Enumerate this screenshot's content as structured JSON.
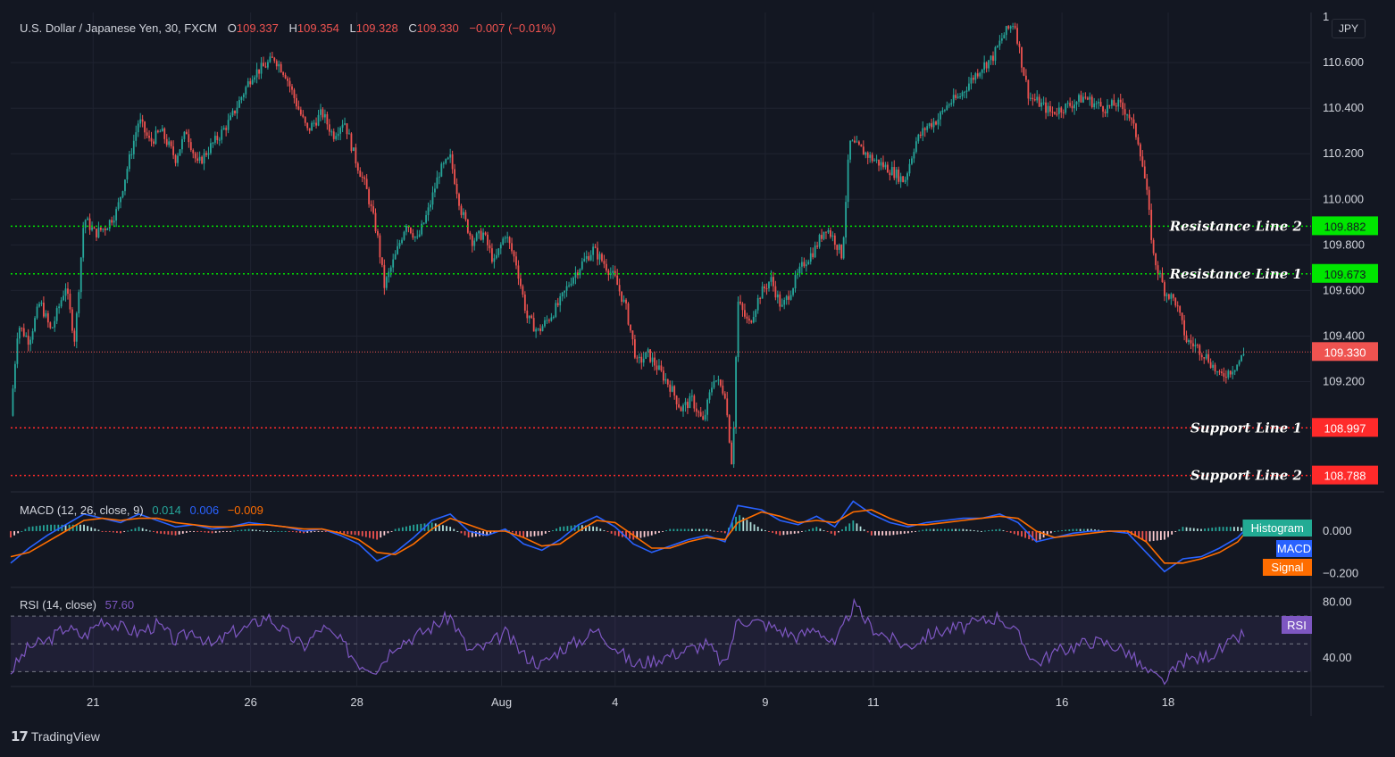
{
  "header": {
    "symbol": "U.S. Dollar / Japanese Yen, 30, FXCM",
    "o_label": "O",
    "o_value": "109.337",
    "h_label": "H",
    "h_value": "109.354",
    "l_label": "L",
    "l_value": "109.328",
    "c_label": "C",
    "c_value": "109.330",
    "change": "−0.007 (−0.01%)"
  },
  "currency_button": "JPY",
  "colors": {
    "background": "#131722",
    "up": "#26a69a",
    "down": "#ef5350",
    "resistance": "#00e600",
    "support": "#ff2a2a",
    "macd": "#2962ff",
    "signal": "#ff6d00",
    "rsi": "#7e57c2"
  },
  "chart_data": [
    {
      "type": "candlestick",
      "title": "U.S. Dollar / Japanese Yen, 30, FXCM",
      "ylim": [
        108.72,
        110.82
      ],
      "y_ticks": [
        "110.600",
        "110.400",
        "110.200",
        "110.000",
        "109.800",
        "109.600",
        "109.400",
        "109.200"
      ],
      "x_ticks": [
        "21",
        "26",
        "28",
        "Aug",
        "4",
        "9",
        "11",
        "16",
        "18"
      ],
      "close_series": [
        [
          0,
          109.05
        ],
        [
          0.4,
          109.45
        ],
        [
          1,
          109.38
        ],
        [
          1.6,
          109.55
        ],
        [
          2.2,
          109.42
        ],
        [
          3,
          109.62
        ],
        [
          3.5,
          109.38
        ],
        [
          4,
          109.92
        ],
        [
          4.6,
          109.85
        ],
        [
          5.2,
          109.88
        ],
        [
          5.8,
          109.95
        ],
        [
          6.4,
          110.15
        ],
        [
          7,
          110.35
        ],
        [
          7.6,
          110.25
        ],
        [
          8.2,
          110.3
        ],
        [
          9,
          110.18
        ],
        [
          9.6,
          110.3
        ],
        [
          10.2,
          110.15
        ],
        [
          10.8,
          110.22
        ],
        [
          11.4,
          110.28
        ],
        [
          12,
          110.35
        ],
        [
          12.6,
          110.45
        ],
        [
          13.2,
          110.55
        ],
        [
          13.8,
          110.58
        ],
        [
          14.4,
          110.62
        ],
        [
          15,
          110.55
        ],
        [
          15.6,
          110.42
        ],
        [
          16.2,
          110.3
        ],
        [
          17,
          110.38
        ],
        [
          17.6,
          110.28
        ],
        [
          18.2,
          110.35
        ],
        [
          18.8,
          110.18
        ],
        [
          19.4,
          110.05
        ],
        [
          20,
          109.85
        ],
        [
          20.4,
          109.62
        ],
        [
          21,
          109.75
        ],
        [
          21.6,
          109.9
        ],
        [
          22.2,
          109.82
        ],
        [
          22.8,
          109.95
        ],
        [
          23.4,
          110.12
        ],
        [
          24,
          110.18
        ],
        [
          24.6,
          109.95
        ],
        [
          25.2,
          109.82
        ],
        [
          25.8,
          109.85
        ],
        [
          26.4,
          109.72
        ],
        [
          27,
          109.85
        ],
        [
          27.6,
          109.72
        ],
        [
          28.2,
          109.48
        ],
        [
          28.8,
          109.42
        ],
        [
          29.4,
          109.48
        ],
        [
          30,
          109.55
        ],
        [
          30.6,
          109.65
        ],
        [
          31.2,
          109.72
        ],
        [
          31.8,
          109.78
        ],
        [
          32.4,
          109.72
        ],
        [
          33,
          109.65
        ],
        [
          33.6,
          109.52
        ],
        [
          34.2,
          109.28
        ],
        [
          34.8,
          109.32
        ],
        [
          35.4,
          109.25
        ],
        [
          36,
          109.18
        ],
        [
          36.6,
          109.08
        ],
        [
          37.2,
          109.12
        ],
        [
          37.8,
          109.02
        ],
        [
          38.4,
          109.22
        ],
        [
          39,
          109.15
        ],
        [
          39.4,
          108.82
        ],
        [
          39.7,
          109.55
        ],
        [
          40.3,
          109.45
        ],
        [
          40.9,
          109.58
        ],
        [
          41.5,
          109.65
        ],
        [
          42.1,
          109.52
        ],
        [
          42.7,
          109.62
        ],
        [
          43.3,
          109.72
        ],
        [
          43.9,
          109.78
        ],
        [
          44.5,
          109.88
        ],
        [
          45,
          109.82
        ],
        [
          45.4,
          109.75
        ],
        [
          45.8,
          110.25
        ],
        [
          46.4,
          110.22
        ],
        [
          47,
          110.18
        ],
        [
          47.6,
          110.15
        ],
        [
          48.2,
          110.12
        ],
        [
          48.8,
          110.08
        ],
        [
          49.4,
          110.25
        ],
        [
          50,
          110.32
        ],
        [
          50.6,
          110.35
        ],
        [
          51.2,
          110.42
        ],
        [
          51.8,
          110.45
        ],
        [
          52.4,
          110.52
        ],
        [
          53,
          110.58
        ],
        [
          53.6,
          110.62
        ],
        [
          54.2,
          110.72
        ],
        [
          54.8,
          110.78
        ],
        [
          55.2,
          110.6
        ],
        [
          55.6,
          110.45
        ],
        [
          56.2,
          110.42
        ],
        [
          56.8,
          110.38
        ],
        [
          57.4,
          110.4
        ],
        [
          58,
          110.42
        ],
        [
          58.6,
          110.45
        ],
        [
          59.2,
          110.42
        ],
        [
          59.8,
          110.4
        ],
        [
          60.4,
          110.42
        ],
        [
          61,
          110.38
        ],
        [
          61.6,
          110.25
        ],
        [
          62,
          110.05
        ],
        [
          62.4,
          109.75
        ],
        [
          63,
          109.6
        ],
        [
          63.6,
          109.55
        ],
        [
          64.2,
          109.38
        ],
        [
          64.8,
          109.35
        ],
        [
          65.4,
          109.3
        ],
        [
          66,
          109.22
        ],
        [
          66.6,
          109.25
        ],
        [
          67,
          109.28
        ],
        [
          67.4,
          109.33
        ]
      ],
      "reference_lines": [
        {
          "label": "Resistance Line 2",
          "value": 109.882,
          "value_label": "109.882"
        },
        {
          "label": "Resistance Line 1",
          "value": 109.673,
          "value_label": "109.673"
        },
        {
          "label": "Support Line 1",
          "value": 108.997,
          "value_label": "108.997"
        },
        {
          "label": "Support Line 2",
          "value": 108.788,
          "value_label": "108.788"
        }
      ],
      "last_price": {
        "value": 109.33,
        "label": "109.330"
      },
      "axis_top_partial_label": "1"
    },
    {
      "type": "line",
      "title": "MACD (12, 26, close, 9)",
      "readings": {
        "histogram": "0.014",
        "macd": "0.006",
        "signal": "−0.009"
      },
      "ylim": [
        -0.26,
        0.18
      ],
      "y_ticks": [
        "0.000",
        "−0.200"
      ],
      "legend": [
        "Histogram",
        "MACD",
        "Signal"
      ],
      "macd_series": [
        [
          0,
          -0.15
        ],
        [
          1,
          -0.08
        ],
        [
          2,
          -0.02
        ],
        [
          3,
          0.03
        ],
        [
          4,
          0.08
        ],
        [
          5,
          0.06
        ],
        [
          6,
          0.04
        ],
        [
          7,
          0.08
        ],
        [
          8,
          0.05
        ],
        [
          9,
          0.02
        ],
        [
          10,
          0.03
        ],
        [
          11,
          0.01
        ],
        [
          12,
          0.02
        ],
        [
          13,
          0.04
        ],
        [
          14,
          0.03
        ],
        [
          15,
          0.02
        ],
        [
          16,
          0.0
        ],
        [
          17,
          0.01
        ],
        [
          18,
          -0.02
        ],
        [
          19,
          -0.06
        ],
        [
          20,
          -0.14
        ],
        [
          21,
          -0.1
        ],
        [
          22,
          -0.03
        ],
        [
          23,
          0.05
        ],
        [
          24,
          0.08
        ],
        [
          25,
          0.0
        ],
        [
          26,
          -0.02
        ],
        [
          27,
          0.01
        ],
        [
          28,
          -0.06
        ],
        [
          29,
          -0.09
        ],
        [
          30,
          -0.04
        ],
        [
          31,
          0.03
        ],
        [
          32,
          0.07
        ],
        [
          33,
          0.02
        ],
        [
          34,
          -0.06
        ],
        [
          35,
          -0.1
        ],
        [
          36,
          -0.07
        ],
        [
          37,
          -0.04
        ],
        [
          38,
          -0.02
        ],
        [
          39,
          -0.05
        ],
        [
          39.7,
          0.12
        ],
        [
          41,
          0.1
        ],
        [
          42,
          0.05
        ],
        [
          43,
          0.03
        ],
        [
          44,
          0.07
        ],
        [
          45,
          0.02
        ],
        [
          46,
          0.14
        ],
        [
          47,
          0.08
        ],
        [
          48,
          0.04
        ],
        [
          49,
          0.02
        ],
        [
          50,
          0.04
        ],
        [
          51,
          0.05
        ],
        [
          52,
          0.06
        ],
        [
          53,
          0.06
        ],
        [
          54,
          0.08
        ],
        [
          55,
          0.04
        ],
        [
          56,
          -0.05
        ],
        [
          57,
          -0.03
        ],
        [
          58,
          -0.01
        ],
        [
          59,
          0.0
        ],
        [
          60,
          0.0
        ],
        [
          61,
          -0.01
        ],
        [
          62,
          -0.1
        ],
        [
          63,
          -0.19
        ],
        [
          64,
          -0.13
        ],
        [
          65,
          -0.12
        ],
        [
          66,
          -0.08
        ],
        [
          67,
          -0.03
        ],
        [
          67.4,
          0.006
        ]
      ],
      "signal_series": [
        [
          0,
          -0.12
        ],
        [
          1,
          -0.1
        ],
        [
          2,
          -0.05
        ],
        [
          3,
          0.0
        ],
        [
          4,
          0.05
        ],
        [
          5,
          0.06
        ],
        [
          6,
          0.05
        ],
        [
          7,
          0.06
        ],
        [
          8,
          0.06
        ],
        [
          9,
          0.04
        ],
        [
          10,
          0.03
        ],
        [
          11,
          0.02
        ],
        [
          12,
          0.02
        ],
        [
          13,
          0.03
        ],
        [
          14,
          0.03
        ],
        [
          15,
          0.02
        ],
        [
          16,
          0.01
        ],
        [
          17,
          0.01
        ],
        [
          18,
          -0.01
        ],
        [
          19,
          -0.04
        ],
        [
          20,
          -0.1
        ],
        [
          21,
          -0.11
        ],
        [
          22,
          -0.06
        ],
        [
          23,
          0.01
        ],
        [
          24,
          0.06
        ],
        [
          25,
          0.03
        ],
        [
          26,
          0.0
        ],
        [
          27,
          0.0
        ],
        [
          28,
          -0.03
        ],
        [
          29,
          -0.07
        ],
        [
          30,
          -0.06
        ],
        [
          31,
          0.0
        ],
        [
          32,
          0.05
        ],
        [
          33,
          0.04
        ],
        [
          34,
          -0.02
        ],
        [
          35,
          -0.08
        ],
        [
          36,
          -0.08
        ],
        [
          37,
          -0.05
        ],
        [
          38,
          -0.03
        ],
        [
          39,
          -0.04
        ],
        [
          39.7,
          0.04
        ],
        [
          41,
          0.09
        ],
        [
          42,
          0.07
        ],
        [
          43,
          0.04
        ],
        [
          44,
          0.05
        ],
        [
          45,
          0.04
        ],
        [
          46,
          0.09
        ],
        [
          47,
          0.1
        ],
        [
          48,
          0.06
        ],
        [
          49,
          0.03
        ],
        [
          50,
          0.03
        ],
        [
          51,
          0.04
        ],
        [
          52,
          0.05
        ],
        [
          53,
          0.06
        ],
        [
          54,
          0.07
        ],
        [
          55,
          0.06
        ],
        [
          56,
          0.0
        ],
        [
          57,
          -0.03
        ],
        [
          58,
          -0.02
        ],
        [
          59,
          -0.01
        ],
        [
          60,
          0.0
        ],
        [
          61,
          0.0
        ],
        [
          62,
          -0.05
        ],
        [
          63,
          -0.15
        ],
        [
          64,
          -0.15
        ],
        [
          65,
          -0.13
        ],
        [
          66,
          -0.1
        ],
        [
          67,
          -0.05
        ],
        [
          67.4,
          -0.009
        ]
      ]
    },
    {
      "type": "line",
      "title": "RSI (14, close)",
      "reading": "57.60",
      "ylim": [
        20,
        90
      ],
      "y_ticks": [
        "80.00",
        "40.00"
      ],
      "legend": [
        "RSI"
      ],
      "band": [
        30,
        70
      ],
      "series": [
        [
          0,
          30
        ],
        [
          1,
          48
        ],
        [
          2,
          52
        ],
        [
          3,
          62
        ],
        [
          4,
          55
        ],
        [
          5,
          68
        ],
        [
          6,
          62
        ],
        [
          7,
          58
        ],
        [
          8,
          64
        ],
        [
          9,
          52
        ],
        [
          10,
          60
        ],
        [
          11,
          48
        ],
        [
          12,
          58
        ],
        [
          13,
          62
        ],
        [
          14,
          70
        ],
        [
          15,
          58
        ],
        [
          16,
          48
        ],
        [
          17,
          62
        ],
        [
          18,
          52
        ],
        [
          19,
          36
        ],
        [
          20,
          32
        ],
        [
          21,
          50
        ],
        [
          22,
          55
        ],
        [
          23,
          62
        ],
        [
          24,
          70
        ],
        [
          25,
          45
        ],
        [
          26,
          48
        ],
        [
          27,
          58
        ],
        [
          28,
          42
        ],
        [
          29,
          35
        ],
        [
          30,
          46
        ],
        [
          31,
          52
        ],
        [
          32,
          60
        ],
        [
          33,
          48
        ],
        [
          34,
          35
        ],
        [
          35,
          38
        ],
        [
          36,
          42
        ],
        [
          37,
          46
        ],
        [
          38,
          50
        ],
        [
          39,
          34
        ],
        [
          39.7,
          68
        ],
        [
          41,
          65
        ],
        [
          42,
          60
        ],
        [
          43,
          55
        ],
        [
          44,
          62
        ],
        [
          45,
          48
        ],
        [
          46,
          78
        ],
        [
          47,
          62
        ],
        [
          48,
          54
        ],
        [
          49,
          48
        ],
        [
          50,
          56
        ],
        [
          51,
          60
        ],
        [
          52,
          62
        ],
        [
          53,
          66
        ],
        [
          54,
          70
        ],
        [
          55,
          56
        ],
        [
          56,
          36
        ],
        [
          57,
          44
        ],
        [
          58,
          48
        ],
        [
          59,
          52
        ],
        [
          60,
          50
        ],
        [
          61,
          44
        ],
        [
          62,
          30
        ],
        [
          63,
          22
        ],
        [
          64,
          38
        ],
        [
          65,
          40
        ],
        [
          66,
          45
        ],
        [
          67,
          54
        ],
        [
          67.4,
          57.6
        ]
      ]
    }
  ],
  "indicator_labels": {
    "macd_title": "MACD (12, 26, close, 9)",
    "rsi_title": "RSI (14, close)"
  },
  "footer": {
    "brand": "TradingView"
  }
}
